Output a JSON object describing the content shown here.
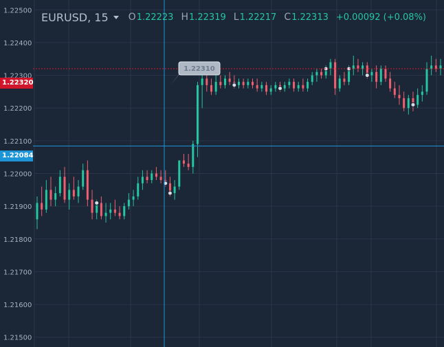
{
  "header": {
    "symbol": "EURUSD, 15",
    "open_key": "O",
    "open": "1.22223",
    "high_key": "H",
    "high": "1.22319",
    "low_key": "L",
    "low": "1.22217",
    "close_key": "C",
    "close": "1.22313",
    "change": "+0.00092 (+0.08%)"
  },
  "price_axis": {
    "labels": [
      "1.22500",
      "1.22400",
      "1.22300",
      "1.22200",
      "1.22100",
      "1.22000",
      "1.21900",
      "1.21800",
      "1.21700",
      "1.21600",
      "1.21500"
    ]
  },
  "markers": {
    "last_price": "1.22320",
    "crosshair_price": "1.22084",
    "tooltip": "1.22310"
  },
  "colors": {
    "background": "#1b2636",
    "up": "#26c6a0",
    "down": "#ee5f70",
    "last_price": "#d0162a",
    "crosshair": "#1d94d6"
  },
  "chart_data": {
    "type": "candlestick",
    "ylim": [
      1.2147,
      1.2253
    ],
    "candles": [
      [
        1.2186,
        1.2193,
        1.2183,
        1.2191
      ],
      [
        1.2191,
        1.2196,
        1.2187,
        1.2189
      ],
      [
        1.2189,
        1.2198,
        1.2188,
        1.2195
      ],
      [
        1.2195,
        1.2199,
        1.219,
        1.2192
      ],
      [
        1.2192,
        1.2196,
        1.219,
        1.2194
      ],
      [
        1.2194,
        1.2201,
        1.2193,
        1.2199
      ],
      [
        1.2199,
        1.2202,
        1.2191,
        1.2192
      ],
      [
        1.2192,
        1.2197,
        1.2189,
        1.2195
      ],
      [
        1.2195,
        1.2199,
        1.2192,
        1.2193
      ],
      [
        1.2193,
        1.2198,
        1.2191,
        1.2196
      ],
      [
        1.2196,
        1.2203,
        1.2195,
        1.2201
      ],
      [
        1.2201,
        1.2204,
        1.219,
        1.2192
      ],
      [
        1.2192,
        1.2195,
        1.2186,
        1.2188
      ],
      [
        1.2188,
        1.2192,
        1.2186,
        1.2191
      ],
      [
        1.2191,
        1.2193,
        1.2186,
        1.2187
      ],
      [
        1.2187,
        1.2191,
        1.2185,
        1.2188
      ],
      [
        1.2188,
        1.2191,
        1.2186,
        1.2189
      ],
      [
        1.2189,
        1.2192,
        1.2187,
        1.2188
      ],
      [
        1.2188,
        1.219,
        1.2186,
        1.2187
      ],
      [
        1.2187,
        1.2191,
        1.2186,
        1.219
      ],
      [
        1.219,
        1.2194,
        1.2189,
        1.2192
      ],
      [
        1.2192,
        1.2195,
        1.219,
        1.2193
      ],
      [
        1.2193,
        1.2199,
        1.2192,
        1.2197
      ],
      [
        1.2197,
        1.2201,
        1.2195,
        1.2199
      ],
      [
        1.2199,
        1.2201,
        1.2197,
        1.2198
      ],
      [
        1.2198,
        1.2201,
        1.2197,
        1.22
      ],
      [
        1.22,
        1.2202,
        1.2198,
        1.2199
      ],
      [
        1.2199,
        1.2201,
        1.2197,
        1.2198
      ],
      [
        1.2198,
        1.2201,
        1.2196,
        1.2197
      ],
      [
        1.2197,
        1.2199,
        1.2193,
        1.2194
      ],
      [
        1.2194,
        1.2198,
        1.2192,
        1.2196
      ],
      [
        1.2196,
        1.2204,
        1.2195,
        1.2204
      ],
      [
        1.2204,
        1.2206,
        1.2202,
        1.2203
      ],
      [
        1.2203,
        1.2206,
        1.2201,
        1.2202
      ],
      [
        1.2202,
        1.221,
        1.22,
        1.2209
      ],
      [
        1.2209,
        1.2228,
        1.2205,
        1.2227
      ],
      [
        1.2227,
        1.223,
        1.222,
        1.2229
      ],
      [
        1.2229,
        1.2232,
        1.2225,
        1.2227
      ],
      [
        1.2227,
        1.2229,
        1.2224,
        1.2225
      ],
      [
        1.2225,
        1.223,
        1.2224,
        1.2228
      ],
      [
        1.2228,
        1.223,
        1.2226,
        1.2227
      ],
      [
        1.2227,
        1.223,
        1.2226,
        1.2229
      ],
      [
        1.2229,
        1.2231,
        1.2227,
        1.2228
      ],
      [
        1.2228,
        1.223,
        1.2226,
        1.2227
      ],
      [
        1.2227,
        1.2229,
        1.2226,
        1.2228
      ],
      [
        1.2228,
        1.2229,
        1.2226,
        1.2227
      ],
      [
        1.2227,
        1.2229,
        1.2226,
        1.2228
      ],
      [
        1.2228,
        1.2229,
        1.2226,
        1.2227
      ],
      [
        1.2227,
        1.2229,
        1.2225,
        1.2226
      ],
      [
        1.2226,
        1.2228,
        1.2225,
        1.2227
      ],
      [
        1.2227,
        1.2228,
        1.2224,
        1.2225
      ],
      [
        1.2225,
        1.2227,
        1.2224,
        1.2226
      ],
      [
        1.2226,
        1.2228,
        1.2225,
        1.2227
      ],
      [
        1.2227,
        1.2228,
        1.2225,
        1.2226
      ],
      [
        1.2226,
        1.2228,
        1.2225,
        1.2227
      ],
      [
        1.2227,
        1.2229,
        1.2226,
        1.2228
      ],
      [
        1.2228,
        1.2229,
        1.2225,
        1.2226
      ],
      [
        1.2226,
        1.2228,
        1.2225,
        1.2227
      ],
      [
        1.2227,
        1.2229,
        1.2225,
        1.2226
      ],
      [
        1.2226,
        1.2229,
        1.2225,
        1.2228
      ],
      [
        1.2228,
        1.2231,
        1.2227,
        1.223
      ],
      [
        1.223,
        1.2232,
        1.2228,
        1.2231
      ],
      [
        1.2231,
        1.2232,
        1.2229,
        1.223
      ],
      [
        1.223,
        1.2233,
        1.2229,
        1.2232
      ],
      [
        1.2232,
        1.2235,
        1.223,
        1.2234
      ],
      [
        1.2234,
        1.2235,
        1.2224,
        1.2226
      ],
      [
        1.2226,
        1.223,
        1.2225,
        1.2229
      ],
      [
        1.2229,
        1.2231,
        1.2227,
        1.2228
      ],
      [
        1.2228,
        1.2233,
        1.2227,
        1.2232
      ],
      [
        1.2232,
        1.2236,
        1.223,
        1.2233
      ],
      [
        1.2233,
        1.2235,
        1.2231,
        1.2232
      ],
      [
        1.2232,
        1.2234,
        1.223,
        1.2233
      ],
      [
        1.2233,
        1.2234,
        1.2229,
        1.223
      ],
      [
        1.223,
        1.2232,
        1.2228,
        1.2231
      ],
      [
        1.2231,
        1.2233,
        1.2226,
        1.2228
      ],
      [
        1.2228,
        1.2233,
        1.2227,
        1.2232
      ],
      [
        1.2232,
        1.2233,
        1.2228,
        1.2229
      ],
      [
        1.2229,
        1.2231,
        1.2225,
        1.2226
      ],
      [
        1.2226,
        1.2228,
        1.2223,
        1.2224
      ],
      [
        1.2224,
        1.2227,
        1.2221,
        1.2223
      ],
      [
        1.2223,
        1.2225,
        1.2219,
        1.222
      ],
      [
        1.222,
        1.2224,
        1.2218,
        1.2223
      ],
      [
        1.2223,
        1.2225,
        1.2219,
        1.2221
      ],
      [
        1.2221,
        1.2226,
        1.222,
        1.2224
      ],
      [
        1.2224,
        1.2227,
        1.2222,
        1.2225
      ],
      [
        1.2225,
        1.2234,
        1.2224,
        1.2232
      ],
      [
        1.2232,
        1.2236,
        1.223,
        1.2233
      ],
      [
        1.2233,
        1.2235,
        1.2231,
        1.2232
      ],
      [
        1.2232,
        1.2235,
        1.223,
        1.2233
      ]
    ]
  }
}
